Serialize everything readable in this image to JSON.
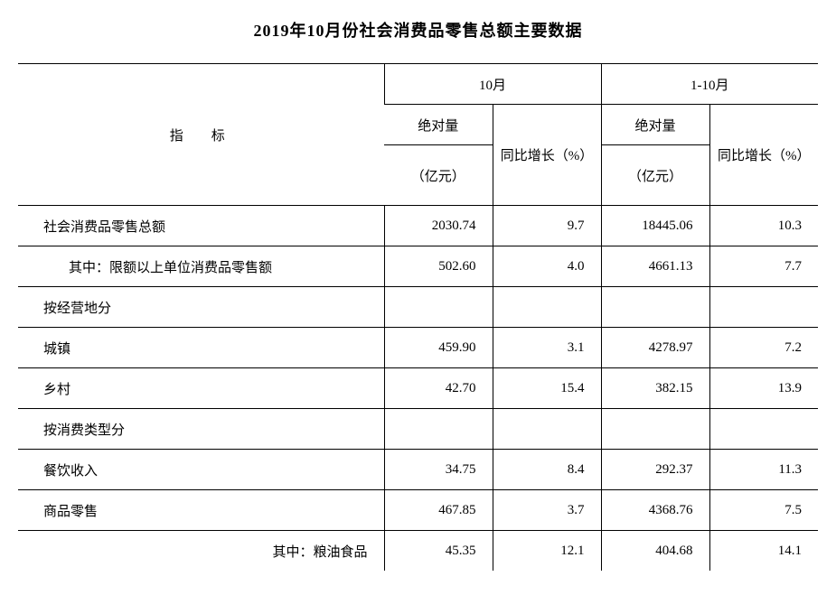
{
  "title": "2019年10月份社会消费品零售总额主要数据",
  "header": {
    "indicator": "指　标",
    "group_oct": "10月",
    "group_ytd": "1-10月",
    "abs_amount": "绝对量",
    "unit_yiyuan": "（亿元）",
    "yoy_growth_oct": "同比增长（%）",
    "yoy_growth_ytd": "同比增长（%）"
  },
  "rows": [
    {
      "label": "社会消费品零售总额",
      "cls": "",
      "v1": "2030.74",
      "v2": "9.7",
      "v3": "18445.06",
      "v4": "10.3"
    },
    {
      "label": "其中：限额以上单位消费品零售额",
      "cls": "sub1",
      "v1": "502.60",
      "v2": "4.0",
      "v3": "4661.13",
      "v4": "7.7"
    },
    {
      "label": "按经营地分",
      "cls": "",
      "v1": "",
      "v2": "",
      "v3": "",
      "v4": ""
    },
    {
      "label": "城镇",
      "cls": "",
      "v1": "459.90",
      "v2": "3.1",
      "v3": "4278.97",
      "v4": "7.2"
    },
    {
      "label": "乡村",
      "cls": "",
      "v1": "42.70",
      "v2": "15.4",
      "v3": "382.15",
      "v4": "13.9"
    },
    {
      "label": "按消费类型分",
      "cls": "",
      "v1": "",
      "v2": "",
      "v3": "",
      "v4": ""
    },
    {
      "label": "餐饮收入",
      "cls": "",
      "v1": "34.75",
      "v2": "8.4",
      "v3": "292.37",
      "v4": "11.3"
    },
    {
      "label": "商品零售",
      "cls": "",
      "v1": "467.85",
      "v2": "3.7",
      "v3": "4368.76",
      "v4": "7.5"
    },
    {
      "label": "其中：粮油食品",
      "cls": "subright",
      "v1": "45.35",
      "v2": "12.1",
      "v3": "404.68",
      "v4": "14.1",
      "last": true
    }
  ]
}
